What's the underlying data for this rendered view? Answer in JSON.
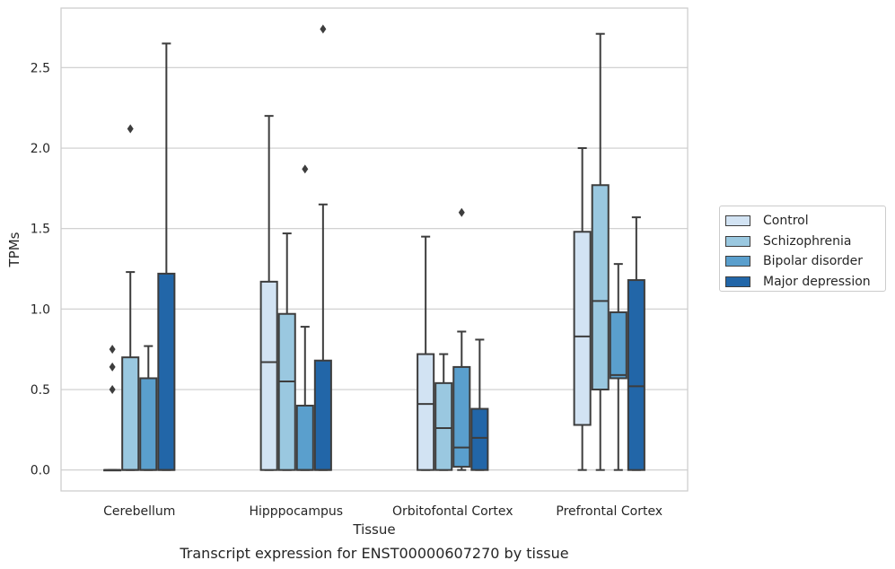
{
  "chart_data": {
    "type": "box",
    "caption": "Transcript expression for ENST00000607270 by tissue",
    "xlabel": "Tissue",
    "ylabel": "TPMs",
    "ylim": [
      -0.13,
      2.87
    ],
    "yticks": [
      "0.0",
      "0.5",
      "1.0",
      "1.5",
      "2.0",
      "2.5"
    ],
    "categories": [
      "Cerebellum",
      "Hipppocampus",
      "Orbitofontal Cortex",
      "Prefrontal Cortex"
    ],
    "grid": true,
    "legend_position": "right",
    "series": [
      {
        "name": "Control",
        "color": "#d2e3f3",
        "boxes": [
          {
            "q1": 0.0,
            "median": 0.0,
            "q3": 0.0,
            "whisker_low": 0.0,
            "whisker_high": 0.0,
            "outliers": [
              0.5,
              0.64,
              0.75
            ]
          },
          {
            "q1": 0.0,
            "median": 0.67,
            "q3": 1.17,
            "whisker_low": 0.0,
            "whisker_high": 2.2,
            "outliers": []
          },
          {
            "q1": 0.0,
            "median": 0.41,
            "q3": 0.72,
            "whisker_low": 0.0,
            "whisker_high": 1.45,
            "outliers": []
          },
          {
            "q1": 0.28,
            "median": 0.83,
            "q3": 1.48,
            "whisker_low": 0.0,
            "whisker_high": 2.0,
            "outliers": []
          }
        ]
      },
      {
        "name": "Schizophrenia",
        "color": "#9ac8e0",
        "boxes": [
          {
            "q1": 0.0,
            "median": 0.0,
            "q3": 0.7,
            "whisker_low": 0.0,
            "whisker_high": 1.23,
            "outliers": [
              2.12
            ]
          },
          {
            "q1": 0.0,
            "median": 0.55,
            "q3": 0.97,
            "whisker_low": 0.0,
            "whisker_high": 1.47,
            "outliers": []
          },
          {
            "q1": 0.0,
            "median": 0.26,
            "q3": 0.54,
            "whisker_low": 0.0,
            "whisker_high": 0.72,
            "outliers": []
          },
          {
            "q1": 0.5,
            "median": 1.05,
            "q3": 1.77,
            "whisker_low": 0.0,
            "whisker_high": 2.71,
            "outliers": []
          }
        ]
      },
      {
        "name": "Bipolar disorder",
        "color": "#5a9fcd",
        "boxes": [
          {
            "q1": 0.0,
            "median": 0.0,
            "q3": 0.57,
            "whisker_low": 0.0,
            "whisker_high": 0.77,
            "outliers": []
          },
          {
            "q1": 0.0,
            "median": 0.0,
            "q3": 0.4,
            "whisker_low": 0.0,
            "whisker_high": 0.89,
            "outliers": [
              1.87
            ]
          },
          {
            "q1": 0.02,
            "median": 0.14,
            "q3": 0.64,
            "whisker_low": 0.0,
            "whisker_high": 0.86,
            "outliers": [
              1.6
            ]
          },
          {
            "q1": 0.57,
            "median": 0.59,
            "q3": 0.98,
            "whisker_low": 0.0,
            "whisker_high": 1.28,
            "outliers": []
          }
        ]
      },
      {
        "name": "Major depression",
        "color": "#2266a8",
        "boxes": [
          {
            "q1": 0.0,
            "median": 0.0,
            "q3": 1.22,
            "whisker_low": 0.0,
            "whisker_high": 2.65,
            "outliers": []
          },
          {
            "q1": 0.0,
            "median": 0.0,
            "q3": 0.68,
            "whisker_low": 0.0,
            "whisker_high": 1.65,
            "outliers": [
              2.74
            ]
          },
          {
            "q1": 0.0,
            "median": 0.2,
            "q3": 0.38,
            "whisker_low": 0.0,
            "whisker_high": 0.81,
            "outliers": []
          },
          {
            "q1": 0.0,
            "median": 0.52,
            "q3": 1.18,
            "whisker_low": 0.0,
            "whisker_high": 1.57,
            "outliers": []
          }
        ]
      }
    ]
  }
}
